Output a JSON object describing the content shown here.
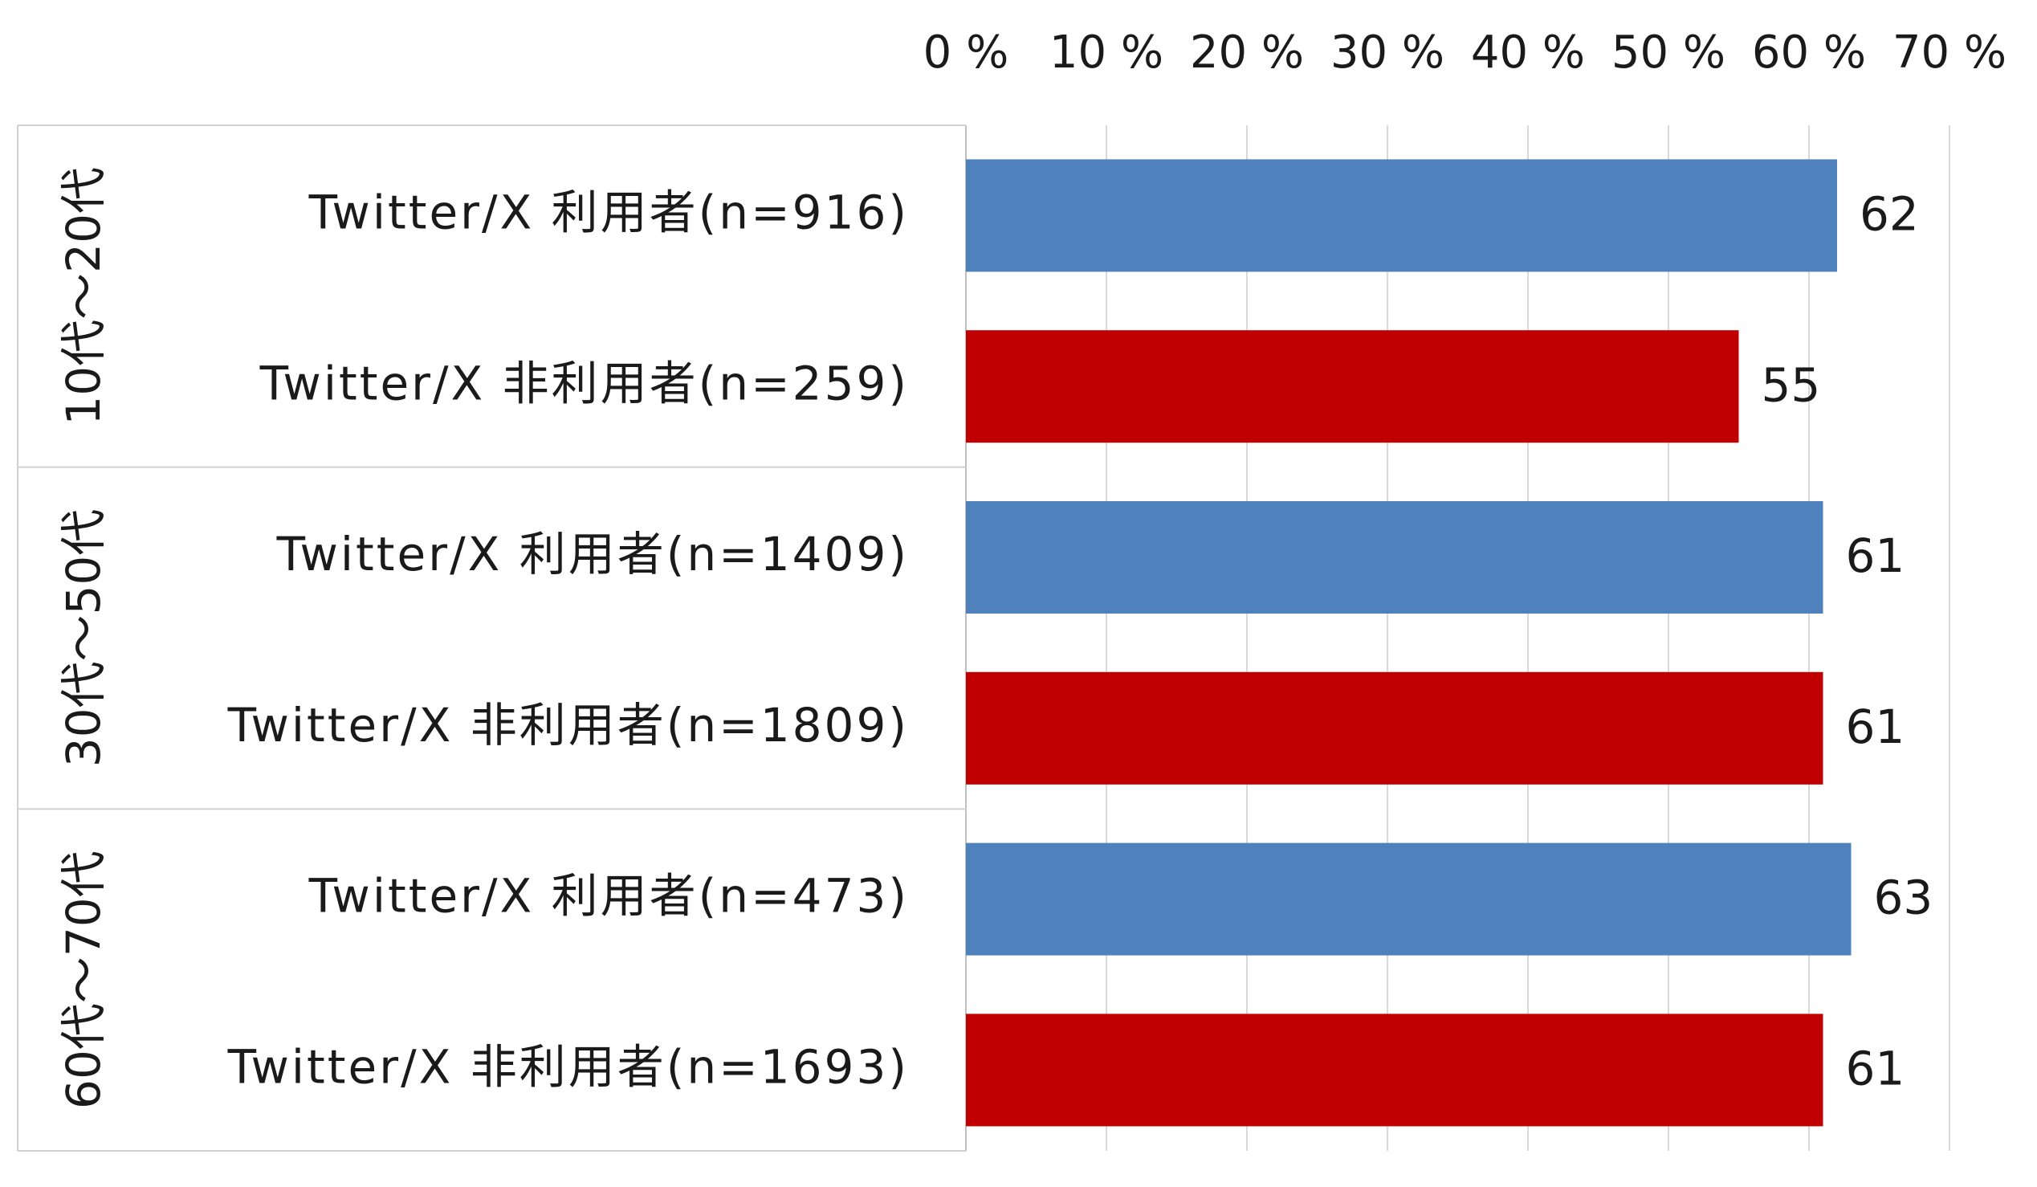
{
  "chart_data": {
    "type": "bar",
    "orientation": "horizontal",
    "xlim": [
      0,
      70
    ],
    "x_ticks": [
      "0 %",
      "10 %",
      "20 %",
      "30 %",
      "40 %",
      "50 %",
      "60 %",
      "70 %"
    ],
    "tick_values": [
      0,
      10,
      20,
      30,
      40,
      50,
      60,
      70
    ],
    "groups": [
      {
        "label": "10代～20代",
        "bars": [
          {
            "label": "Twitter/X 利用者(n=916)",
            "value": 62,
            "color": "#4f81bd"
          },
          {
            "label": "Twitter/X 非利用者(n=259)",
            "value": 55,
            "color": "#c00000"
          }
        ]
      },
      {
        "label": "30代～50代",
        "bars": [
          {
            "label": "Twitter/X 利用者(n=1409)",
            "value": 61,
            "color": "#4f81bd"
          },
          {
            "label": "Twitter/X 非利用者(n=1809)",
            "value": 61,
            "color": "#c00000"
          }
        ]
      },
      {
        "label": "60代～70代",
        "bars": [
          {
            "label": "Twitter/X 利用者(n=473)",
            "value": 63,
            "color": "#4f81bd"
          },
          {
            "label": "Twitter/X 非利用者(n=1693)",
            "value": 61,
            "color": "#c00000"
          }
        ]
      }
    ],
    "grid": true
  }
}
